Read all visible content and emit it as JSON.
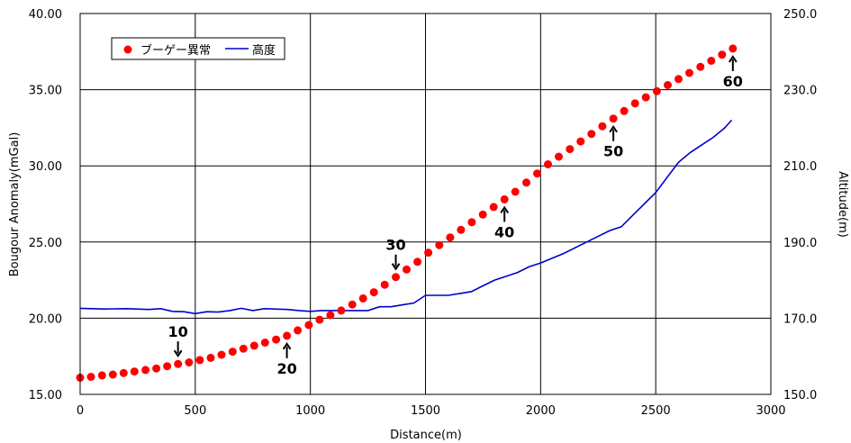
{
  "chart_data": {
    "type": "line",
    "title": "",
    "xlabel": "Distance(m)",
    "ylabel": "Bougour Anomaly(mGal)",
    "y2label": "Altitude(m)",
    "xlim": [
      0,
      3000
    ],
    "ylim": [
      15,
      40
    ],
    "y2lim": [
      150,
      250
    ],
    "grid": true,
    "legend_position": "top-left",
    "x_ticks": [
      "0",
      "500",
      "1000",
      "1500",
      "2000",
      "2500",
      "3000"
    ],
    "y_ticks": [
      "15.00",
      "20.00",
      "25.00",
      "30.00",
      "35.00",
      "40.00"
    ],
    "y2_ticks": [
      "150.0",
      "170.0",
      "190.0",
      "210.0",
      "230.0",
      "250.0"
    ],
    "series": [
      {
        "name": "ブーゲー異常",
        "color": "#ff0000",
        "style": "markers",
        "axis": "left",
        "x": [
          0,
          47,
          95,
          142,
          189,
          236,
          284,
          331,
          378,
          425,
          473,
          520,
          567,
          614,
          662,
          709,
          756,
          803,
          851,
          898,
          945,
          993,
          1040,
          1087,
          1134,
          1182,
          1229,
          1276,
          1323,
          1371,
          1418,
          1465,
          1512,
          1560,
          1607,
          1654,
          1701,
          1749,
          1796,
          1843,
          1890,
          1938,
          1985,
          2032,
          2079,
          2127,
          2174,
          2221,
          2268,
          2316,
          2363,
          2410,
          2457,
          2505,
          2552,
          2599,
          2646,
          2694,
          2741,
          2788,
          2835
        ],
        "y": [
          16.1,
          16.15,
          16.25,
          16.3,
          16.4,
          16.5,
          16.6,
          16.7,
          16.85,
          17.0,
          17.1,
          17.25,
          17.4,
          17.6,
          17.8,
          18.0,
          18.2,
          18.4,
          18.6,
          18.85,
          19.2,
          19.55,
          19.9,
          20.2,
          20.5,
          20.9,
          21.3,
          21.7,
          22.2,
          22.7,
          23.2,
          23.7,
          24.3,
          24.8,
          25.3,
          25.8,
          26.3,
          26.8,
          27.3,
          27.8,
          28.3,
          28.9,
          29.5,
          30.1,
          30.6,
          31.1,
          31.6,
          32.1,
          32.6,
          33.1,
          33.6,
          34.1,
          34.5,
          34.9,
          35.3,
          35.7,
          36.1,
          36.5,
          36.9,
          37.3,
          37.7
        ]
      },
      {
        "name": "高度",
        "color": "#0000cc",
        "style": "line",
        "axis": "right",
        "x": [
          0,
          100,
          200,
          300,
          350,
          400,
          450,
          500,
          550,
          600,
          650,
          700,
          750,
          800,
          900,
          950,
          1000,
          1050,
          1100,
          1150,
          1200,
          1250,
          1300,
          1350,
          1400,
          1450,
          1500,
          1550,
          1600,
          1650,
          1700,
          1750,
          1800,
          1850,
          1900,
          1950,
          2000,
          2100,
          2200,
          2300,
          2350,
          2400,
          2500,
          2550,
          2600,
          2650,
          2700,
          2750,
          2800,
          2830
        ],
        "y": [
          172.6,
          172.4,
          172.5,
          172.3,
          172.5,
          171.8,
          171.7,
          171.2,
          171.7,
          171.6,
          172.0,
          172.6,
          172.0,
          172.5,
          172.3,
          172.0,
          171.8,
          172.0,
          172.0,
          172.0,
          172.0,
          172.0,
          173.0,
          173.0,
          173.5,
          174.0,
          176.0,
          176.0,
          176.0,
          176.5,
          177.0,
          178.5,
          180.0,
          181.0,
          182.0,
          183.5,
          184.5,
          187.0,
          190.0,
          193.0,
          194.0,
          197.0,
          203.0,
          207.0,
          211.0,
          213.5,
          215.5,
          217.5,
          220.0,
          222.0
        ]
      }
    ],
    "annotations": [
      {
        "text": "10",
        "x": 425,
        "y": 17.0,
        "arrow": "down"
      },
      {
        "text": "20",
        "x": 898,
        "y": 18.85,
        "arrow": "up"
      },
      {
        "text": "30",
        "x": 1371,
        "y": 22.7,
        "arrow": "down"
      },
      {
        "text": "40",
        "x": 1843,
        "y": 27.8,
        "arrow": "up"
      },
      {
        "text": "50",
        "x": 2316,
        "y": 33.1,
        "arrow": "up"
      },
      {
        "text": "60",
        "x": 2835,
        "y": 37.7,
        "arrow": "up"
      }
    ]
  }
}
